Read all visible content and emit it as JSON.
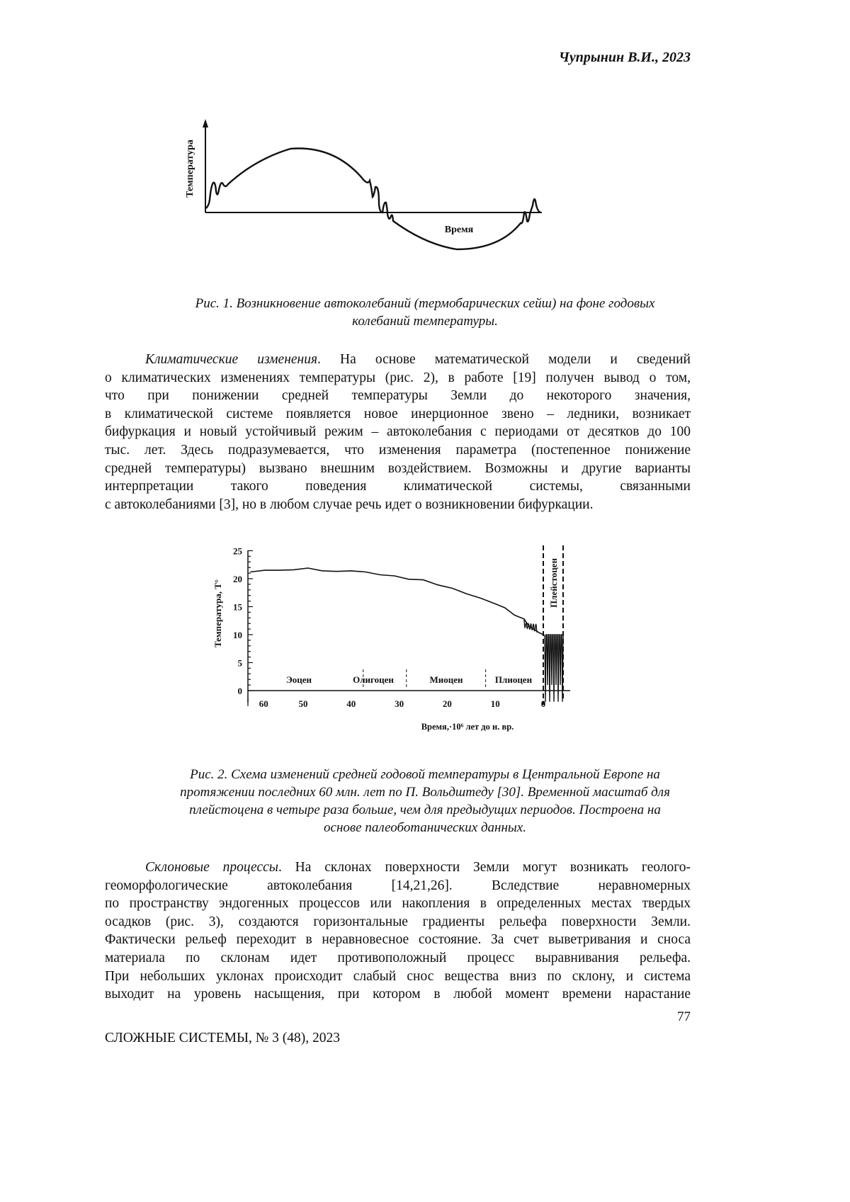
{
  "header": {
    "author_year": "Чупрынин В.И., 2023"
  },
  "figure1": {
    "ylabel": "Температура",
    "xlabel": "Время",
    "caption": [
      "Рис. 1. Возникновение автоколебаний (термобарических сейш) на фоне годовых",
      "колебаний температуры."
    ]
  },
  "paragraph1": {
    "lead": "Климатические изменения",
    "lines": [
      ". На основе математической модели и сведений",
      "о климатических изменениях температуры (рис. 2), в работе [19] получен вывод о том,",
      "что при понижении средней температуры Земли до некоторого значения,",
      "в климатической системе появляется новое инерционное звено – ледники, возникает",
      "бифуркация и новый устойчивый режим – автоколебания с периодами от десятков до 100",
      "тыс. лет. Здесь подразумевается, что изменения параметра (постепенное понижение",
      "средней температуры) вызвано внешним воздействием. Возможны и другие варианты",
      "интерпретации такого поведения климатической системы, связанными",
      "с автоколебаниями [3], но в любом случае речь идет о возникновении бифуркации."
    ]
  },
  "chart_data": {
    "type": "line",
    "xlabel": "Время,·10⁶ лет до н. вр.",
    "ylabel": "Температура, Т°",
    "xlim": [
      62,
      0
    ],
    "ylim": [
      0,
      25
    ],
    "x_ticks": [
      "60",
      "50",
      "40",
      "30",
      "20",
      "10",
      "0"
    ],
    "y_ticks": [
      "0",
      "5",
      "10",
      "15",
      "20",
      "25"
    ],
    "x": [
      61,
      58,
      55,
      52,
      49,
      46,
      43,
      40,
      37,
      34,
      31,
      28,
      25,
      22,
      19,
      16,
      13,
      10,
      8,
      6,
      4,
      3,
      2,
      1,
      0
    ],
    "y": [
      21.2,
      21.5,
      21.5,
      21.6,
      21.9,
      21.4,
      21.3,
      21.4,
      21.2,
      20.7,
      20.5,
      19.9,
      19.8,
      18.9,
      18.3,
      17.3,
      16.5,
      15.5,
      14.8,
      13.5,
      12.8,
      11.5,
      11.0,
      10.4,
      10.0
    ],
    "periods": [
      "Эоцен",
      "Олигоцен",
      "Миоцен",
      "Плиоцен",
      "Плейстоцен"
    ],
    "caption": [
      "Рис. 2. Схема изменений средней годовой температуры в Центральной Европе на",
      "протяжении последних 60 млн. лет по П. Вольдштеду [30]. Временной масштаб для",
      "плейстоцена в четыре раза больше, чем для предыдущих периодов. Построена на",
      "основе палеоботанических данных."
    ]
  },
  "paragraph2": {
    "lead": "Склоновые процессы",
    "lines": [
      ". На склонах поверхности Земли могут возникать геолого-",
      "геоморфологические автоколебания [14,21,26]. Вследствие неравномерных",
      "по пространству эндогенных процессов или накопления в определенных местах твердых",
      "осадков (рис. 3), создаются горизонтальные градиенты рельефа поверхности Земли.",
      "Фактически рельеф переходит в неравновесное состояние. За счет выветривания и сноса",
      "материала по склонам идет противоположный процесс выравнивания рельефа.",
      "При небольших уклонах происходит слабый снос вещества вниз по склону, и система",
      "выходит на уровень насыщения, при котором в любой момент времени нарастание"
    ]
  },
  "footer": {
    "page_number": "77",
    "journal": "СЛОЖНЫЕ СИСТЕМЫ, № 3 (48), 2023"
  }
}
